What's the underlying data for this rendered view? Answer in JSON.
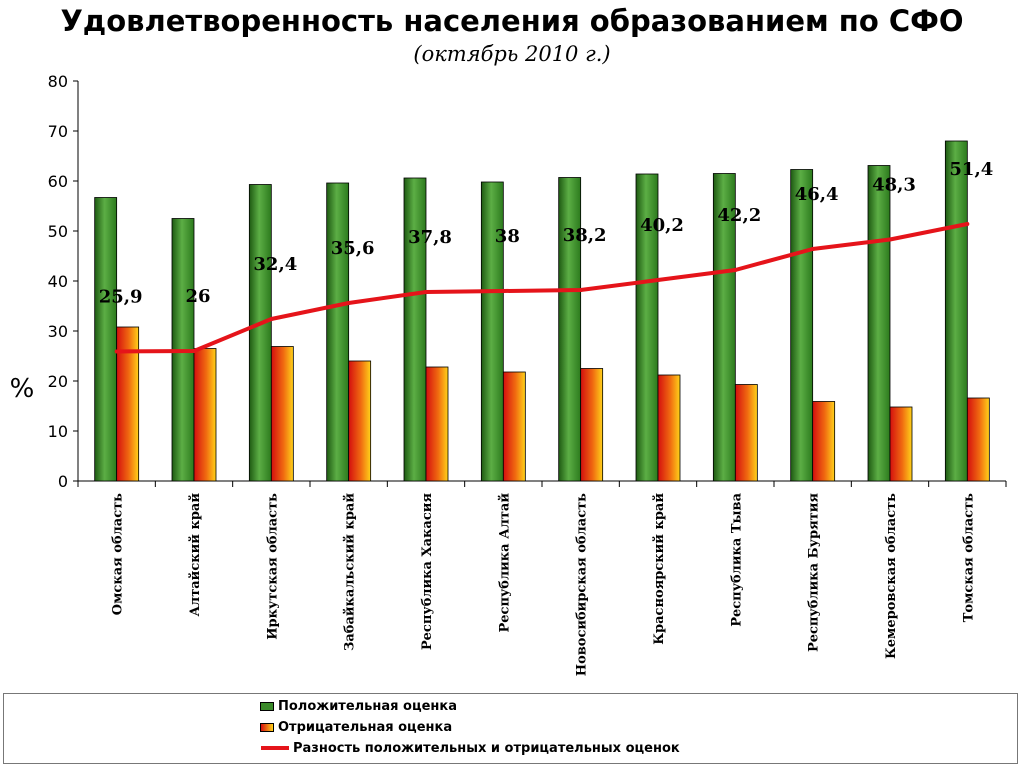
{
  "header": {
    "title": "Удовлетворенность населения образованием по СФО",
    "subtitle": "(октябрь 2010 г.)"
  },
  "chart_data": {
    "type": "bar",
    "title": "Удовлетворенность населения образованием по СФО",
    "subtitle": "(октябрь 2010 г.)",
    "ylabel": "%",
    "ylim": [
      0,
      80
    ],
    "yticks": [
      0,
      10,
      20,
      30,
      40,
      50,
      60,
      70,
      80
    ],
    "grid": false,
    "legend_position": "bottom",
    "categories": [
      "Омская область",
      "Алтайский край",
      "Иркутская область",
      "Забайкальский край",
      "Республика Хакасия",
      "Республика Алтай",
      "Новосибирская область",
      "Красноярский край",
      "Республика Тыва",
      "Республика Бурятия",
      "Кемеровская область",
      "Томская область"
    ],
    "series": [
      {
        "name": "Положительная оценка",
        "type": "bar",
        "color": "#3a8a2a",
        "values": [
          56.7,
          52.5,
          59.3,
          59.6,
          60.6,
          59.8,
          60.7,
          61.4,
          61.5,
          62.3,
          63.1,
          68.0
        ]
      },
      {
        "name": "Отрицательная оценка",
        "type": "bar",
        "color": "#e23c0a",
        "values": [
          30.8,
          26.5,
          26.9,
          24.0,
          22.8,
          21.8,
          22.5,
          21.2,
          19.3,
          15.9,
          14.8,
          16.6
        ]
      },
      {
        "name": "Разность положительных и отрицательных оценок",
        "type": "line",
        "color": "#e5141a",
        "values": [
          25.9,
          26,
          32.4,
          35.6,
          37.8,
          38,
          38.2,
          40.2,
          42.2,
          46.4,
          48.3,
          51.4
        ],
        "labels": [
          "25,9",
          "26",
          "32,4",
          "35,6",
          "37,8",
          "38",
          "38,2",
          "40,2",
          "42,2",
          "46,4",
          "48,3",
          "51,4"
        ]
      }
    ]
  }
}
